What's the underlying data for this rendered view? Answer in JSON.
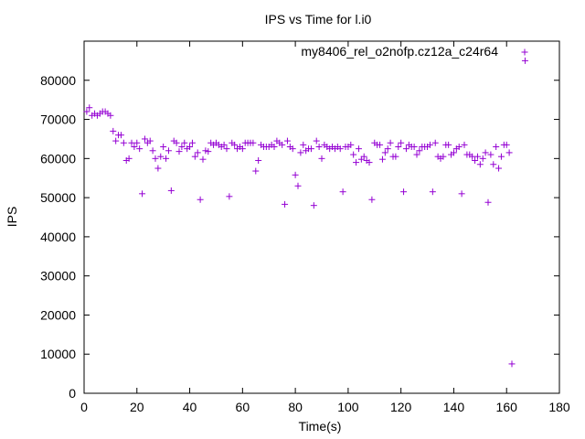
{
  "chart_data": {
    "type": "scatter",
    "title": "IPS vs Time for l.i0",
    "xlabel": "Time(s)",
    "ylabel": "IPS",
    "xlim": [
      0,
      180
    ],
    "ylim": [
      0,
      90000
    ],
    "xticks": [
      0,
      20,
      40,
      60,
      80,
      100,
      120,
      140,
      160,
      180
    ],
    "yticks": [
      0,
      10000,
      20000,
      30000,
      40000,
      50000,
      60000,
      70000,
      80000
    ],
    "grid": false,
    "legend_position": "top-right",
    "marker": "+",
    "series": [
      {
        "name": "my8406_rel_o2nofp.cz12a_c24r64",
        "color": "#9400d3",
        "points": [
          [
            1,
            72000
          ],
          [
            2,
            73000
          ],
          [
            3,
            71000
          ],
          [
            4,
            71500
          ],
          [
            5,
            71000
          ],
          [
            6,
            71500
          ],
          [
            7,
            72000
          ],
          [
            8,
            72000
          ],
          [
            9,
            71500
          ],
          [
            10,
            71000
          ],
          [
            11,
            67000
          ],
          [
            12,
            64500
          ],
          [
            13,
            66000
          ],
          [
            14,
            66000
          ],
          [
            15,
            64000
          ],
          [
            16,
            59500
          ],
          [
            17,
            60000
          ],
          [
            18,
            64000
          ],
          [
            19,
            63000
          ],
          [
            20,
            64000
          ],
          [
            21,
            62500
          ],
          [
            22,
            51000
          ],
          [
            23,
            65000
          ],
          [
            24,
            64000
          ],
          [
            25,
            64500
          ],
          [
            26,
            62000
          ],
          [
            27,
            60000
          ],
          [
            28,
            57500
          ],
          [
            29,
            60500
          ],
          [
            30,
            63000
          ],
          [
            31,
            60000
          ],
          [
            32,
            62000
          ],
          [
            33,
            51800
          ],
          [
            34,
            64500
          ],
          [
            35,
            64000
          ],
          [
            36,
            61800
          ],
          [
            37,
            63000
          ],
          [
            38,
            64000
          ],
          [
            39,
            62500
          ],
          [
            40,
            63000
          ],
          [
            41,
            64000
          ],
          [
            42,
            60500
          ],
          [
            43,
            61500
          ],
          [
            44,
            49500
          ],
          [
            45,
            59800
          ],
          [
            46,
            62000
          ],
          [
            47,
            61800
          ],
          [
            48,
            64000
          ],
          [
            49,
            63500
          ],
          [
            50,
            64000
          ],
          [
            51,
            63500
          ],
          [
            52,
            63000
          ],
          [
            53,
            63500
          ],
          [
            54,
            62500
          ],
          [
            55,
            50300
          ],
          [
            56,
            64000
          ],
          [
            57,
            63500
          ],
          [
            58,
            62500
          ],
          [
            59,
            63000
          ],
          [
            60,
            62500
          ],
          [
            61,
            64000
          ],
          [
            62,
            64000
          ],
          [
            63,
            64000
          ],
          [
            64,
            64000
          ],
          [
            65,
            56800
          ],
          [
            66,
            59500
          ],
          [
            67,
            63500
          ],
          [
            68,
            63000
          ],
          [
            69,
            63000
          ],
          [
            70,
            63000
          ],
          [
            71,
            63500
          ],
          [
            72,
            63000
          ],
          [
            73,
            64500
          ],
          [
            74,
            64000
          ],
          [
            75,
            63500
          ],
          [
            76,
            48300
          ],
          [
            77,
            64500
          ],
          [
            78,
            63000
          ],
          [
            79,
            62500
          ],
          [
            80,
            55800
          ],
          [
            81,
            53000
          ],
          [
            82,
            61500
          ],
          [
            83,
            63500
          ],
          [
            84,
            62000
          ],
          [
            85,
            62500
          ],
          [
            86,
            62500
          ],
          [
            87,
            48000
          ],
          [
            88,
            64500
          ],
          [
            89,
            63000
          ],
          [
            90,
            60000
          ],
          [
            91,
            63500
          ],
          [
            92,
            63000
          ],
          [
            93,
            62500
          ],
          [
            94,
            63000
          ],
          [
            95,
            62500
          ],
          [
            96,
            63000
          ],
          [
            97,
            62500
          ],
          [
            98,
            51500
          ],
          [
            99,
            63000
          ],
          [
            100,
            63000
          ],
          [
            101,
            63500
          ],
          [
            102,
            61000
          ],
          [
            103,
            59000
          ],
          [
            104,
            62500
          ],
          [
            105,
            59800
          ],
          [
            106,
            60500
          ],
          [
            107,
            59500
          ],
          [
            108,
            59000
          ],
          [
            109,
            49500
          ],
          [
            110,
            64000
          ],
          [
            111,
            63500
          ],
          [
            112,
            63500
          ],
          [
            113,
            59800
          ],
          [
            114,
            61500
          ],
          [
            115,
            62500
          ],
          [
            116,
            64000
          ],
          [
            117,
            60500
          ],
          [
            118,
            60500
          ],
          [
            119,
            63000
          ],
          [
            120,
            64000
          ],
          [
            121,
            51500
          ],
          [
            122,
            62500
          ],
          [
            123,
            63500
          ],
          [
            124,
            63000
          ],
          [
            125,
            63000
          ],
          [
            126,
            61000
          ],
          [
            127,
            62000
          ],
          [
            128,
            63000
          ],
          [
            129,
            63000
          ],
          [
            130,
            63000
          ],
          [
            131,
            63500
          ],
          [
            132,
            51500
          ],
          [
            133,
            64000
          ],
          [
            134,
            60500
          ],
          [
            135,
            60000
          ],
          [
            136,
            60500
          ],
          [
            137,
            63500
          ],
          [
            138,
            63500
          ],
          [
            139,
            61000
          ],
          [
            140,
            61500
          ],
          [
            141,
            62500
          ],
          [
            142,
            63000
          ],
          [
            143,
            51000
          ],
          [
            144,
            63500
          ],
          [
            145,
            61000
          ],
          [
            146,
            61000
          ],
          [
            147,
            60500
          ],
          [
            148,
            59500
          ],
          [
            149,
            60500
          ],
          [
            150,
            58500
          ],
          [
            151,
            60000
          ],
          [
            152,
            61500
          ],
          [
            153,
            48800
          ],
          [
            154,
            61000
          ],
          [
            155,
            58500
          ],
          [
            156,
            63000
          ],
          [
            157,
            57500
          ],
          [
            158,
            60500
          ],
          [
            159,
            63500
          ],
          [
            160,
            63500
          ],
          [
            161,
            61500
          ],
          [
            162,
            7500
          ],
          [
            167,
            85000
          ]
        ]
      }
    ]
  }
}
